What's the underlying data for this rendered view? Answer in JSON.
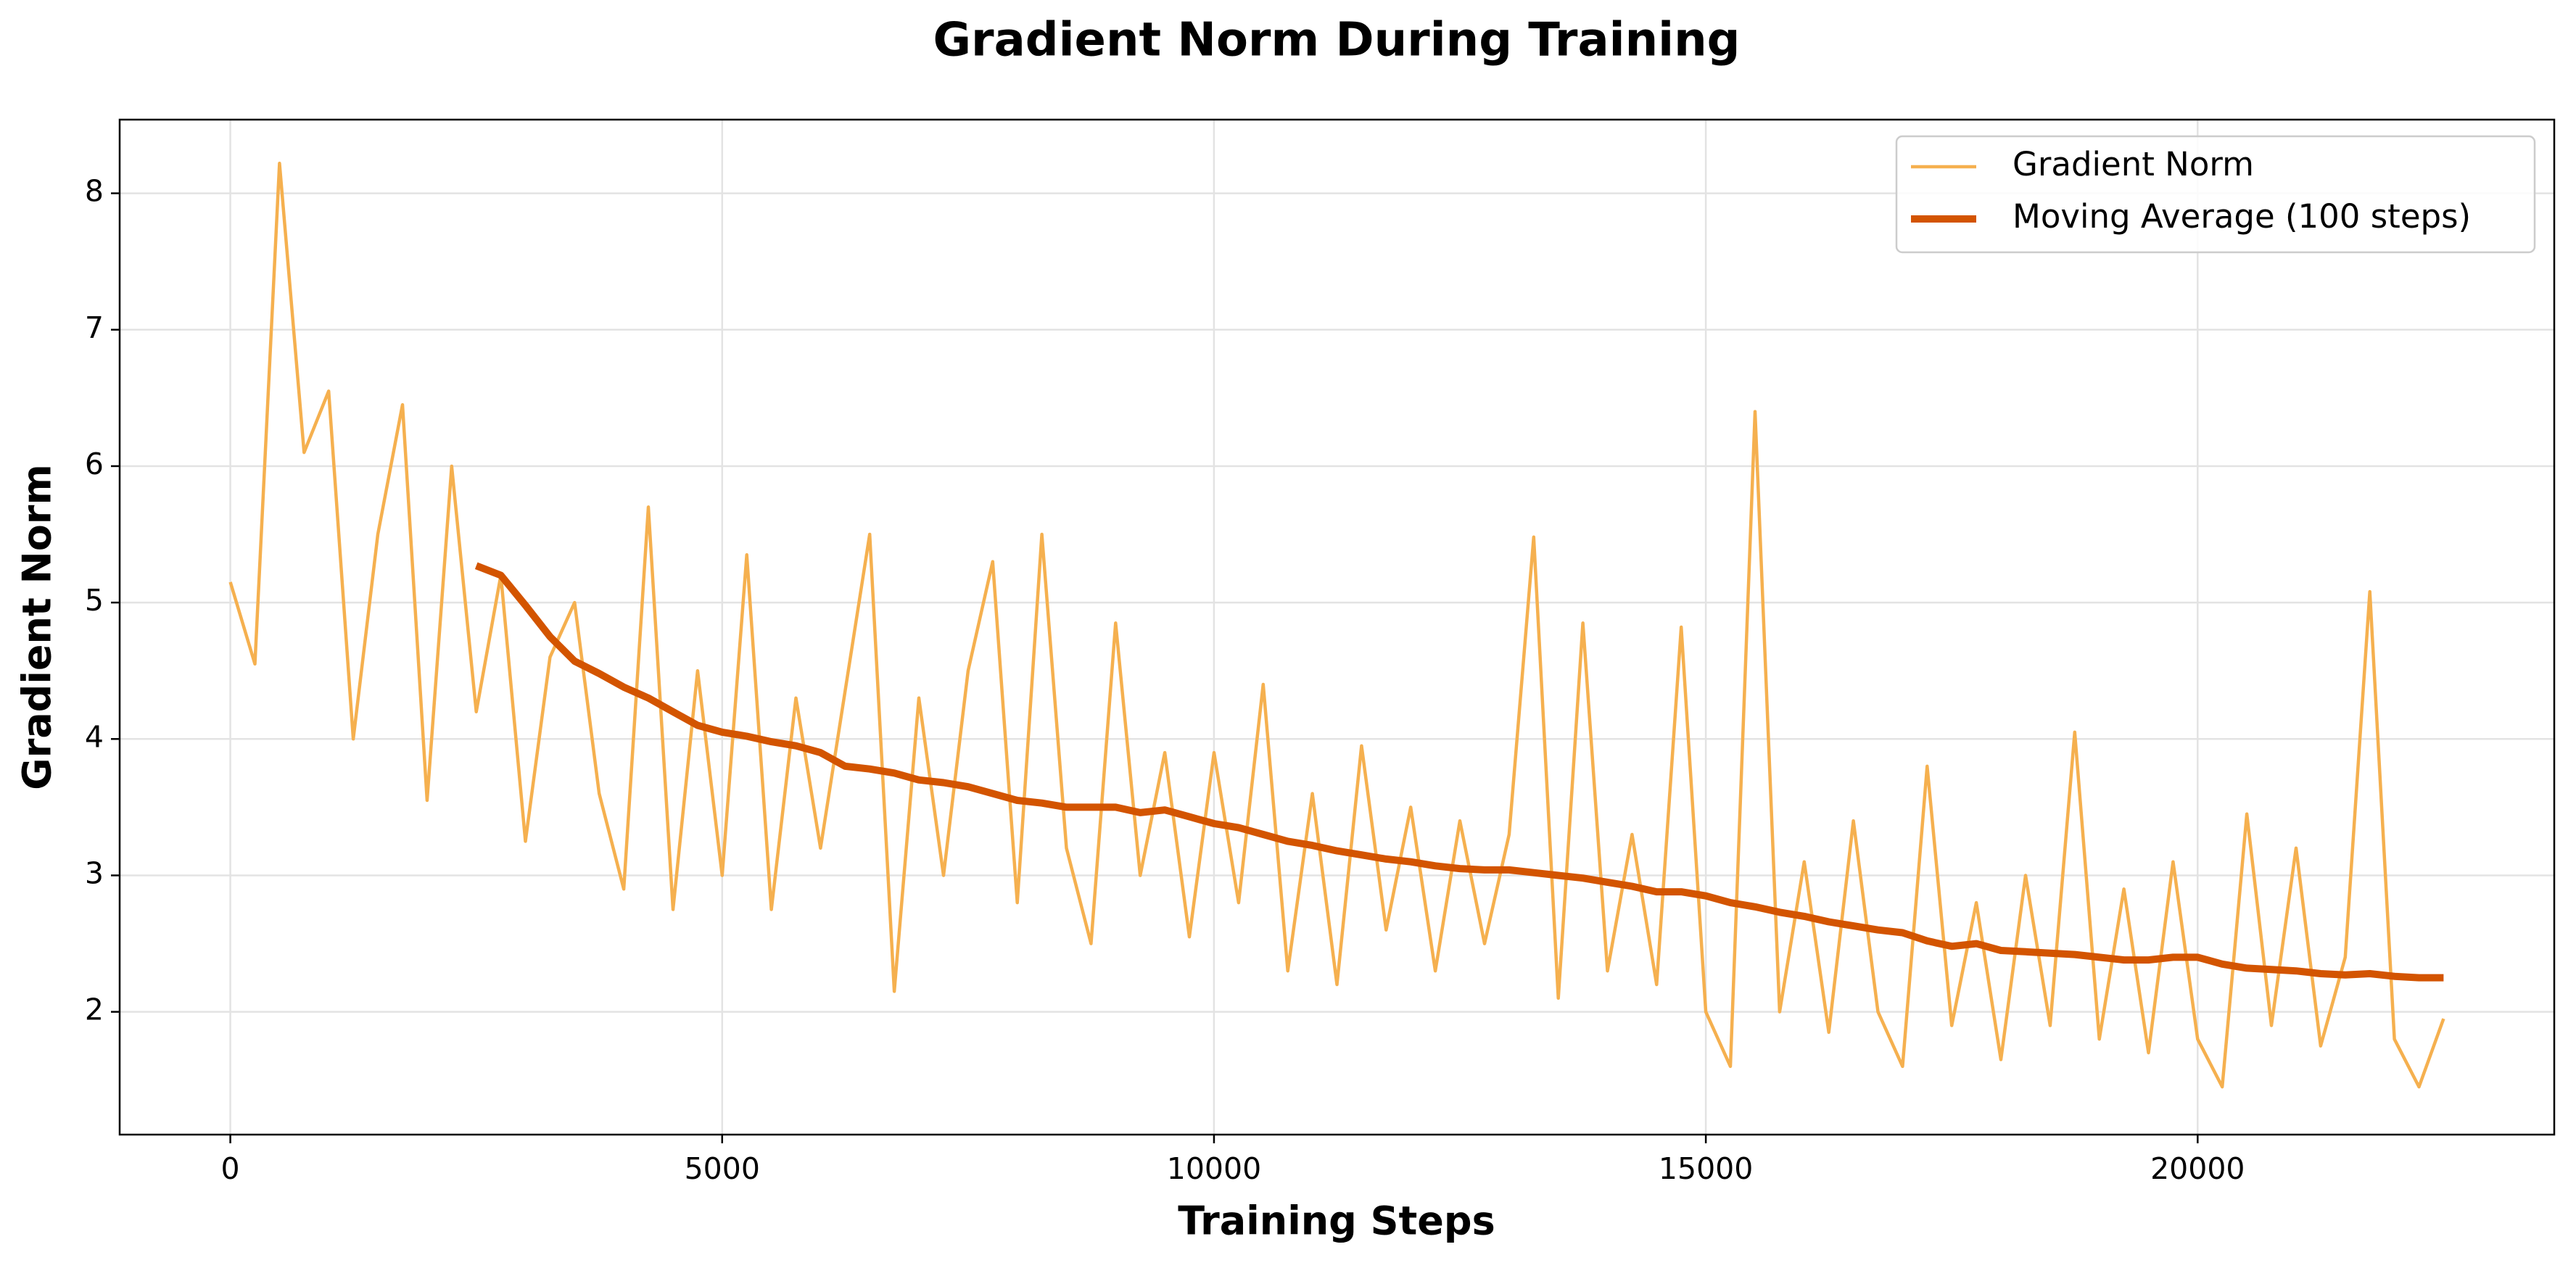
{
  "chart_data": {
    "type": "line",
    "title": "Gradient Norm During Training",
    "x_label": "Training Steps",
    "y_label": "Gradient Norm",
    "x": [
      0,
      250,
      500,
      750,
      1000,
      1250,
      1500,
      1750,
      2000,
      2250,
      2500,
      2750,
      3000,
      3250,
      3500,
      3750,
      4000,
      4250,
      4500,
      4750,
      5000,
      5250,
      5500,
      5750,
      6000,
      6250,
      6500,
      6750,
      7000,
      7250,
      7500,
      7750,
      8000,
      8250,
      8500,
      8750,
      9000,
      9250,
      9500,
      9750,
      10000,
      10250,
      10500,
      10750,
      11000,
      11250,
      11500,
      11750,
      12000,
      12250,
      12500,
      12750,
      13000,
      13250,
      13500,
      13750,
      14000,
      14250,
      14500,
      14750,
      15000,
      15250,
      15500,
      15750,
      16000,
      16250,
      16500,
      16750,
      17000,
      17250,
      17500,
      17750,
      18000,
      18250,
      18500,
      18750,
      19000,
      19250,
      19500,
      19750,
      20000,
      20250,
      20500,
      20750,
      21000,
      21250,
      21500,
      21750,
      22000,
      22250,
      22500
    ],
    "series": [
      {
        "name": "Gradient Norm",
        "color": "#f5b04f",
        "width": 4.5,
        "values": [
          5.15,
          4.55,
          8.22,
          6.1,
          6.55,
          4.0,
          5.5,
          6.45,
          3.55,
          6.0,
          4.2,
          5.2,
          3.25,
          4.6,
          5.0,
          3.6,
          2.9,
          5.7,
          2.75,
          4.5,
          3.0,
          5.35,
          2.75,
          4.3,
          3.2,
          4.35,
          5.5,
          2.15,
          4.3,
          3.0,
          4.5,
          5.3,
          2.8,
          5.5,
          3.2,
          2.5,
          4.85,
          3.0,
          3.9,
          2.55,
          3.9,
          2.8,
          4.4,
          2.3,
          3.6,
          2.2,
          3.95,
          2.6,
          3.5,
          2.3,
          3.4,
          2.5,
          3.3,
          5.48,
          2.1,
          4.85,
          2.3,
          3.3,
          2.2,
          4.82,
          2.0,
          1.6,
          6.4,
          2.0,
          3.1,
          1.85,
          3.4,
          2.0,
          1.6,
          3.8,
          1.9,
          2.8,
          1.65,
          3.0,
          1.9,
          4.05,
          1.8,
          2.9,
          1.7,
          3.1,
          1.8,
          1.45,
          3.45,
          1.9,
          3.2,
          1.75,
          2.4,
          5.08,
          1.8,
          1.45,
          1.95
        ]
      },
      {
        "name": "Moving Average (100 steps)",
        "color": "#d35400",
        "width": 10,
        "values": [
          null,
          null,
          null,
          null,
          null,
          null,
          null,
          null,
          null,
          null,
          5.27,
          5.2,
          4.98,
          4.75,
          4.57,
          4.48,
          4.38,
          4.3,
          4.2,
          4.1,
          4.05,
          4.02,
          3.98,
          3.95,
          3.9,
          3.8,
          3.78,
          3.75,
          3.7,
          3.68,
          3.65,
          3.6,
          3.55,
          3.53,
          3.5,
          3.5,
          3.5,
          3.46,
          3.48,
          3.43,
          3.38,
          3.35,
          3.3,
          3.25,
          3.22,
          3.18,
          3.15,
          3.12,
          3.1,
          3.07,
          3.05,
          3.04,
          3.04,
          3.02,
          3.0,
          2.98,
          2.95,
          2.92,
          2.88,
          2.88,
          2.85,
          2.8,
          2.77,
          2.73,
          2.7,
          2.66,
          2.63,
          2.6,
          2.58,
          2.52,
          2.48,
          2.5,
          2.45,
          2.44,
          2.43,
          2.42,
          2.4,
          2.38,
          2.38,
          2.4,
          2.4,
          2.35,
          2.32,
          2.31,
          2.3,
          2.28,
          2.27,
          2.28,
          2.26,
          2.25,
          2.25
        ]
      }
    ],
    "xlim": [
      -1125,
      23625
    ],
    "ylim": [
      1.1,
      8.54
    ],
    "xticks": [
      0,
      5000,
      10000,
      15000,
      20000
    ],
    "yticks": [
      2,
      3,
      4,
      5,
      6,
      7,
      8
    ],
    "grid": true,
    "legend": "upper right"
  }
}
